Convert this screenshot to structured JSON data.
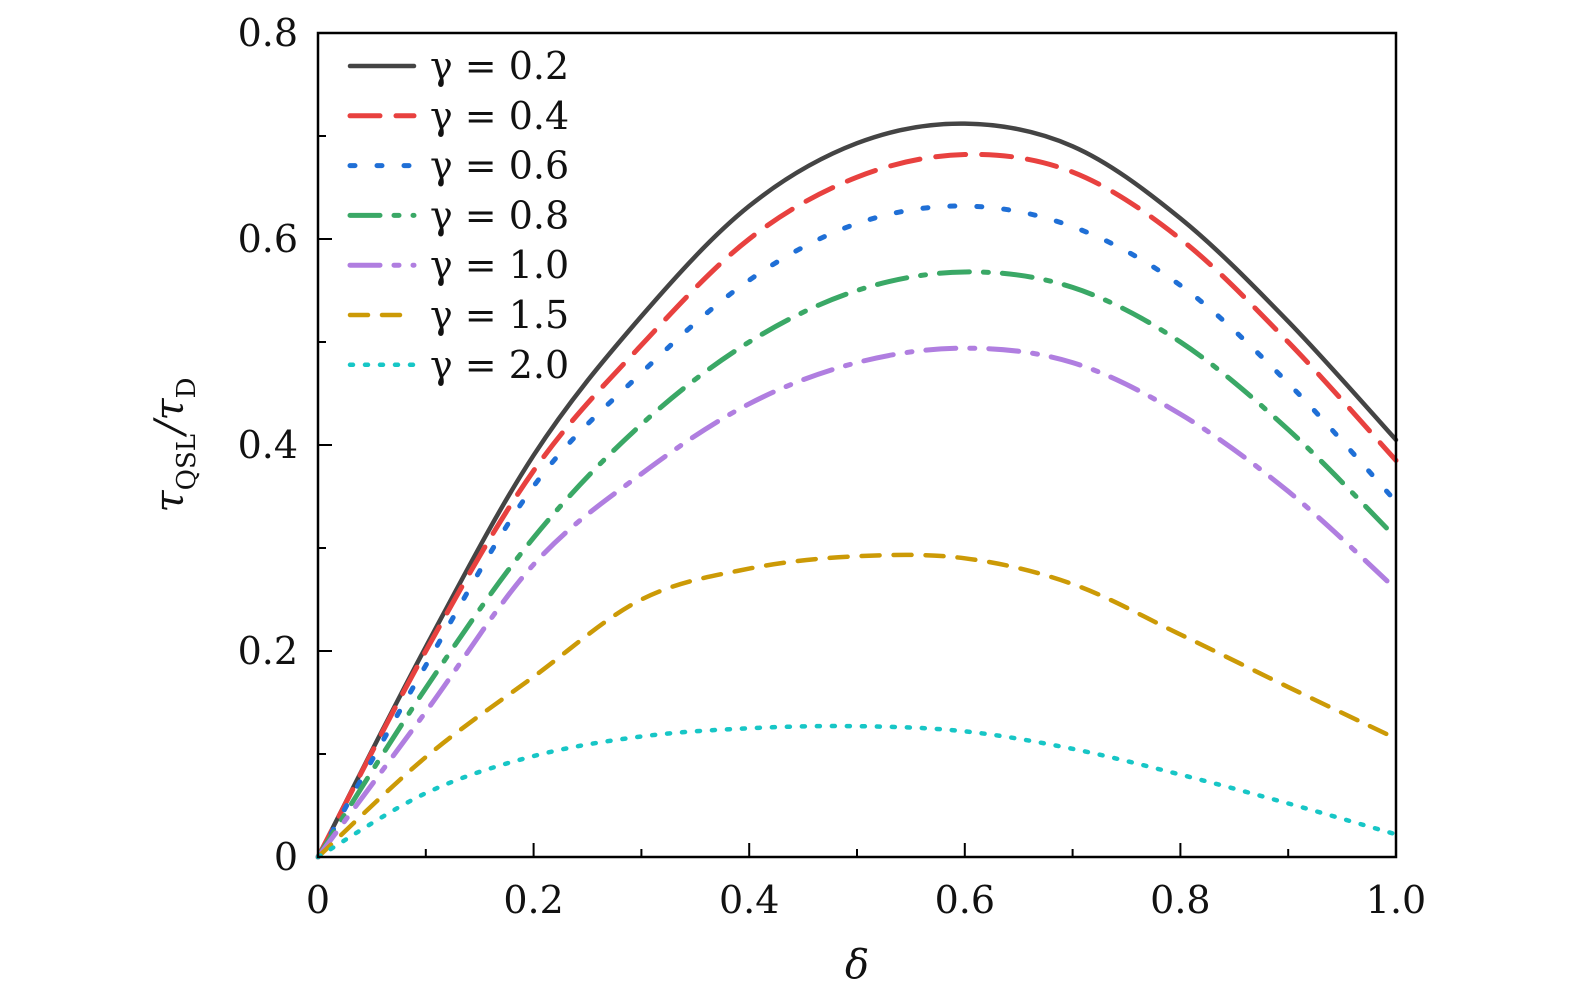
{
  "chart_data": {
    "type": "line",
    "title": "",
    "xlabel": "δ",
    "ylabel": {
      "main": "τ",
      "sub1": "QSL",
      "slash": "/τ",
      "sub2": "D"
    },
    "xlim": [
      0,
      1
    ],
    "ylim": [
      0,
      0.8
    ],
    "xticks": [
      "0",
      "0.2",
      "0.4",
      "0.6",
      "0.8",
      "1.0"
    ],
    "yticks": [
      "0",
      "0.2",
      "0.4",
      "0.6",
      "0.8"
    ],
    "grid": false,
    "legend_position": "top-left",
    "x": [
      0,
      0.1,
      0.2,
      0.3,
      0.4,
      0.5,
      0.6,
      0.7,
      0.8,
      0.9,
      1.0
    ],
    "series": [
      {
        "name": "γ = 0.2",
        "color": "#444444",
        "style": "solid",
        "values": [
          0,
          0.204,
          0.39,
          0.525,
          0.632,
          0.693,
          0.712,
          0.69,
          0.62,
          0.52,
          0.405
        ]
      },
      {
        "name": "γ = 0.4",
        "color": "#e8413f",
        "style": "long-dash",
        "values": [
          0,
          0.2,
          0.375,
          0.497,
          0.6,
          0.66,
          0.682,
          0.665,
          0.6,
          0.5,
          0.385
        ]
      },
      {
        "name": "γ = 0.6",
        "color": "#1f6fd6",
        "style": "dot",
        "values": [
          0,
          0.186,
          0.36,
          0.47,
          0.56,
          0.615,
          0.632,
          0.612,
          0.555,
          0.46,
          0.345
        ]
      },
      {
        "name": "γ = 0.8",
        "color": "#3aa866",
        "style": "dash-dot",
        "values": [
          0,
          0.164,
          0.31,
          0.42,
          0.5,
          0.55,
          0.568,
          0.553,
          0.5,
          0.415,
          0.31
        ]
      },
      {
        "name": "γ = 1.0",
        "color": "#b07ee0",
        "style": "dash-dot",
        "values": [
          0,
          0.141,
          0.284,
          0.372,
          0.44,
          0.48,
          0.494,
          0.48,
          0.43,
          0.355,
          0.26
        ]
      },
      {
        "name": "γ = 1.5",
        "color": "#cc9a06",
        "style": "short-dash",
        "values": [
          0,
          0.097,
          0.175,
          0.25,
          0.28,
          0.292,
          0.29,
          0.265,
          0.216,
          0.165,
          0.115
        ]
      },
      {
        "name": "γ = 2.0",
        "color": "#17c6c6",
        "style": "fine-dot",
        "values": [
          0,
          0.062,
          0.098,
          0.117,
          0.125,
          0.127,
          0.122,
          0.105,
          0.08,
          0.052,
          0.022
        ]
      }
    ]
  }
}
